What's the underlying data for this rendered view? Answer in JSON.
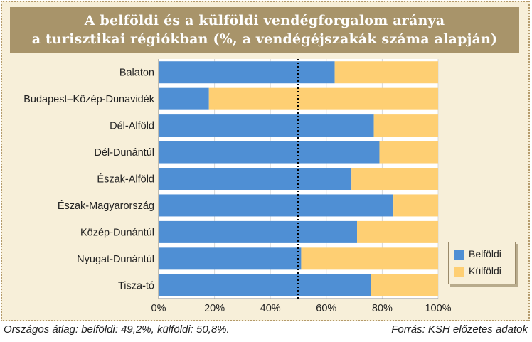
{
  "title_lines": [
    "A belföldi és a külföldi vendégforgalom aránya",
    "a turisztikai régiókban (%, a vendégéjszakák száma alapján)"
  ],
  "footnote_left": "Országos átlag: belföldi: 49,2%, külföldi: 50,8%.",
  "footnote_right": "Forrás: KSH előzetes adatok",
  "colors": {
    "belfoldi": "#4f8fd4",
    "kulfoldi": "#fecf73"
  },
  "chart_data": {
    "type": "bar",
    "orientation": "horizontal",
    "stacked": true,
    "categories": [
      "Balaton",
      "Budapest–Közép-Dunavidék",
      "Dél-Alföld",
      "Dél-Dunántúl",
      "Észak-Alföld",
      "Észak-Magyarország",
      "Közép-Dunántúl",
      "Nyugat-Dunántúl",
      "Tisza-tó"
    ],
    "series": [
      {
        "name": "Belföldi",
        "values": [
          63,
          18,
          77,
          79,
          69,
          84,
          71,
          51,
          76
        ]
      },
      {
        "name": "Külföldi",
        "values": [
          37,
          82,
          23,
          21,
          31,
          16,
          29,
          49,
          24
        ]
      }
    ],
    "xlim": [
      0,
      100
    ],
    "x_ticks": [
      "0%",
      "20%",
      "40%",
      "60%",
      "80%",
      "100%"
    ],
    "reference_line": {
      "value": 50,
      "style": "dotted"
    },
    "legend_position": "bottom-right",
    "grid": true
  }
}
